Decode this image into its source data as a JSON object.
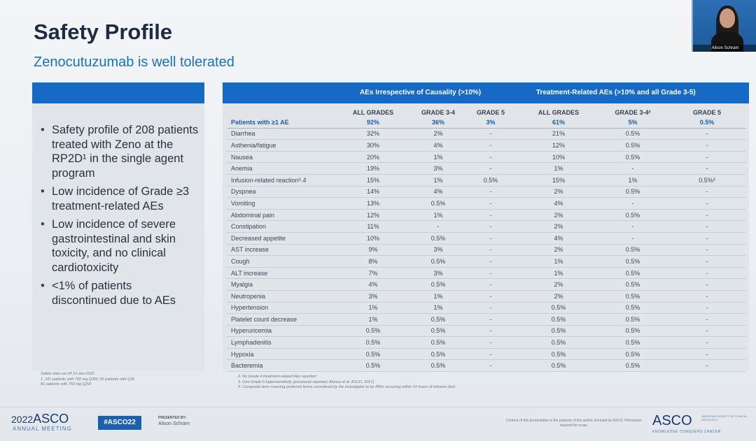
{
  "title": "Safety Profile",
  "subtitle": "Zenocutuzumab is well tolerated",
  "webcam": {
    "name": "Alison Schram"
  },
  "bullets": [
    "Safety profile of 208 patients treated with Zeno at the RP2D¹ in the single agent program",
    "Low incidence of Grade ≥3 treatment-related AEs",
    "Low incidence of severe gastrointestinal and skin toxicity, and no clinical cardiotoxicity",
    "<1% of patients discontinued due to AEs"
  ],
  "table": {
    "group1": "AEs Irrespective of Causality (>10%)",
    "group2": "Treatment-Related AEs (>10% and all Grade 3-5)",
    "columns": [
      "",
      "ALL GRADES",
      "GRADE 3-4",
      "GRADE 5",
      "ALL GRADES",
      "GRADE 3-4²",
      "GRADE 5"
    ],
    "rows": [
      [
        "Patients with ≥1 AE",
        "92%",
        "36%",
        "3%",
        "61%",
        "5%",
        "0.5%"
      ],
      [
        "Diarrhea",
        "32%",
        "2%",
        "-",
        "21%",
        "0.5%",
        "-"
      ],
      [
        "Asthenia/fatigue",
        "30%",
        "4%",
        "-",
        "12%",
        "0.5%",
        "-"
      ],
      [
        "Nausea",
        "20%",
        "1%",
        "-",
        "10%",
        "0.5%",
        "-"
      ],
      [
        "Anemia",
        "19%",
        "3%",
        "-",
        "1%",
        "-",
        "-"
      ],
      [
        "Infusion-related reaction³˒4",
        "15%",
        "1%",
        "0.5%",
        "15%",
        "1%",
        "0.5%³"
      ],
      [
        "Dyspnea",
        "14%",
        "4%",
        "-",
        "2%",
        "0.5%",
        "-"
      ],
      [
        "Vomiting",
        "13%",
        "0.5%",
        "-",
        "4%",
        "-",
        "-"
      ],
      [
        "Abdominal pain",
        "12%",
        "1%",
        "-",
        "2%",
        "0.5%",
        "-"
      ],
      [
        "Constipation",
        "11%",
        "-",
        "-",
        "2%",
        "-",
        "-"
      ],
      [
        "Decreased appetite",
        "10%",
        "0.5%",
        "-",
        "4%",
        "-",
        "-"
      ],
      [
        "AST increase",
        "9%",
        "3%",
        "-",
        "2%",
        "0.5%",
        "-"
      ],
      [
        "Cough",
        "8%",
        "0.5%",
        "-",
        "1%",
        "0.5%",
        "-"
      ],
      [
        "ALT increase",
        "7%",
        "3%",
        "-",
        "1%",
        "0.5%",
        "-"
      ],
      [
        "Myalgia",
        "4%",
        "0.5%",
        "-",
        "2%",
        "0.5%",
        "-"
      ],
      [
        "Neutropenia",
        "3%",
        "1%",
        "-",
        "2%",
        "0.5%",
        "-"
      ],
      [
        "Hypertension",
        "1%",
        "1%",
        "-",
        "0.5%",
        "0.5%",
        "-"
      ],
      [
        "Platelet count decrease",
        "1%",
        "0.5%",
        "-",
        "0.5%",
        "0.5%",
        "-"
      ],
      [
        "Hyperuricemia",
        "0.5%",
        "0.5%",
        "-",
        "0.5%",
        "0.5%",
        "-"
      ],
      [
        "Lymphadenitis",
        "0.5%",
        "0.5%",
        "-",
        "0.5%",
        "0.5%",
        "-"
      ],
      [
        "Hypoxia",
        "0.5%",
        "0.5%",
        "-",
        "0.5%",
        "0.5%",
        "-"
      ],
      [
        "Bacteremia",
        "0.5%",
        "0.5%",
        "-",
        "0.5%",
        "0.5%",
        "-"
      ]
    ]
  },
  "footnotes_left": [
    "Safety data cut off 12-Jan-2022",
    "1. 101 patients with 750 mg Q3W; 26 patients with Q3t;",
    "81 patients with 750 mg Q2W"
  ],
  "footnotes_right": [
    "2. No Grade 4 treatment-related AEs reported",
    "3. One Grade 5 hypersensitivity (previously reported; Alonso et al. ASCO, 2017)",
    "4. Composite term covering preferred terms considered by the investigator to be IRRs occurring within 24 hours of infusion start"
  ],
  "footer": {
    "year": "2022",
    "asco": "ASCO",
    "meeting": "ANNUAL MEETING",
    "hashtag": "#ASCO22",
    "presented_by": "PRESENTED BY:",
    "presenter": "Alison Schram",
    "copyright": "Content of this presentation is the property of the author, licensed by ASCO. Permission required for reuse.",
    "logo": "ASCO",
    "logo_side": "AMERICAN SOCIETY OF CLINICAL ONCOLOGY",
    "tagline": "KNOWLEDGE CONQUERS CANCER"
  }
}
